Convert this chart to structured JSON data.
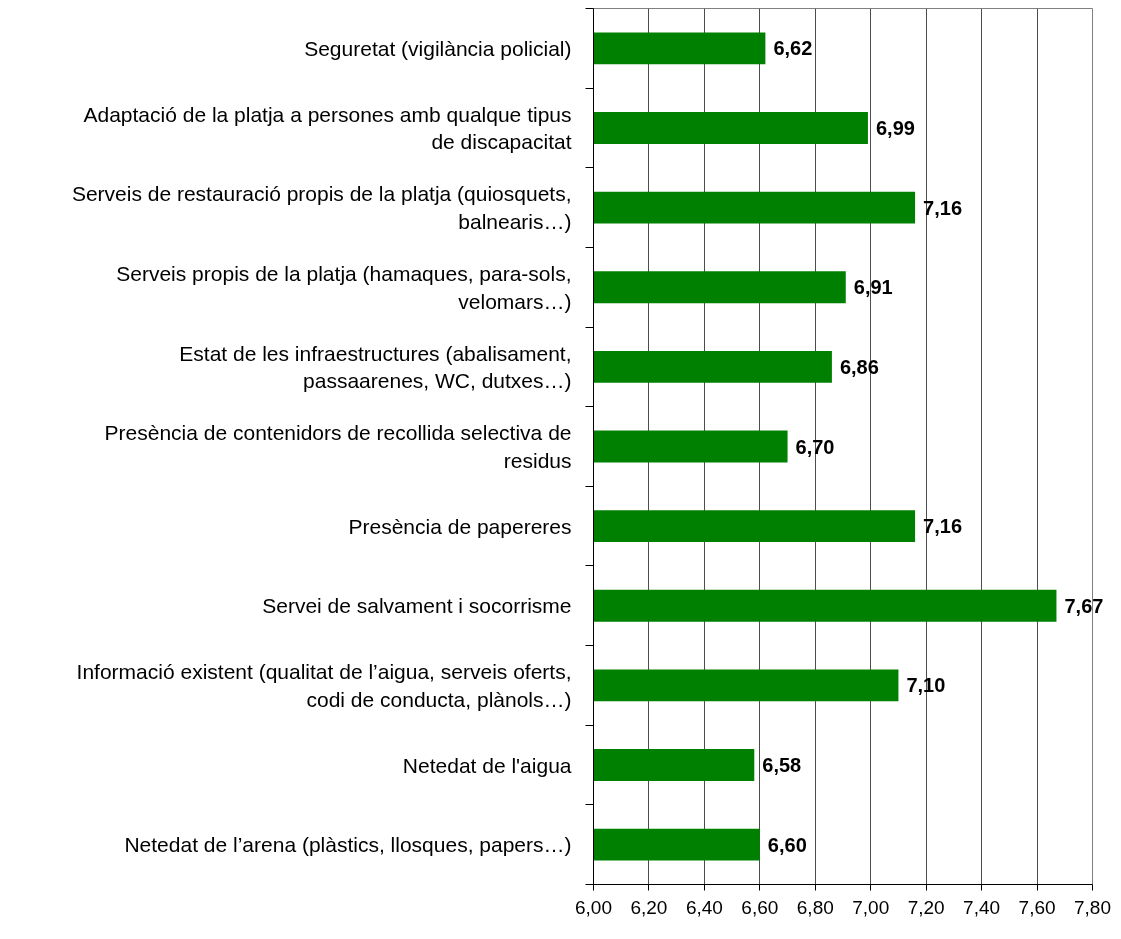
{
  "chart_data": {
    "type": "bar",
    "orientation": "horizontal",
    "categories": [
      "Seguretat (vigilància policial)",
      "Adaptació de la platja a persones amb qualque tipus de discapacitat",
      "Serveis de restauració propis de la platja (quiosquets, balnearis…)",
      "Serveis propis de la platja (hamaques, para-sols, velomars…)",
      "Estat de les infraestructures (abalisament, passaarenes, WC, dutxes…)",
      "Presència de contenidors de recollida selectiva de residus",
      "Presència de papereres",
      "Servei de salvament i socorrisme",
      "Informació existent (qualitat de l’aigua, serveis oferts, codi de conducta, plànols…)",
      "Netedat de l'aigua",
      "Netedat de l’arena (plàstics, llosques, papers…)"
    ],
    "values": [
      6.62,
      6.99,
      7.16,
      6.91,
      6.86,
      6.7,
      7.16,
      7.67,
      7.1,
      6.58,
      6.6
    ],
    "value_labels": [
      "6,62",
      "6,99",
      "7,16",
      "6,91",
      "6,86",
      "6,70",
      "7,16",
      "7,67",
      "7,10",
      "6,58",
      "6,60"
    ],
    "color": "#008000",
    "xlim": [
      6.0,
      7.8
    ],
    "xticks": [
      {
        "value": 6.0,
        "label": "6,00"
      },
      {
        "value": 6.2,
        "label": "6,20"
      },
      {
        "value": 6.4,
        "label": "6,40"
      },
      {
        "value": 6.6,
        "label": "6,60"
      },
      {
        "value": 6.8,
        "label": "6,80"
      },
      {
        "value": 7.0,
        "label": "7,00"
      },
      {
        "value": 7.2,
        "label": "7,20"
      },
      {
        "value": 7.4,
        "label": "7,40"
      },
      {
        "value": 7.6,
        "label": "7,60"
      },
      {
        "value": 7.8,
        "label": "7,80"
      }
    ],
    "grid": "x"
  }
}
